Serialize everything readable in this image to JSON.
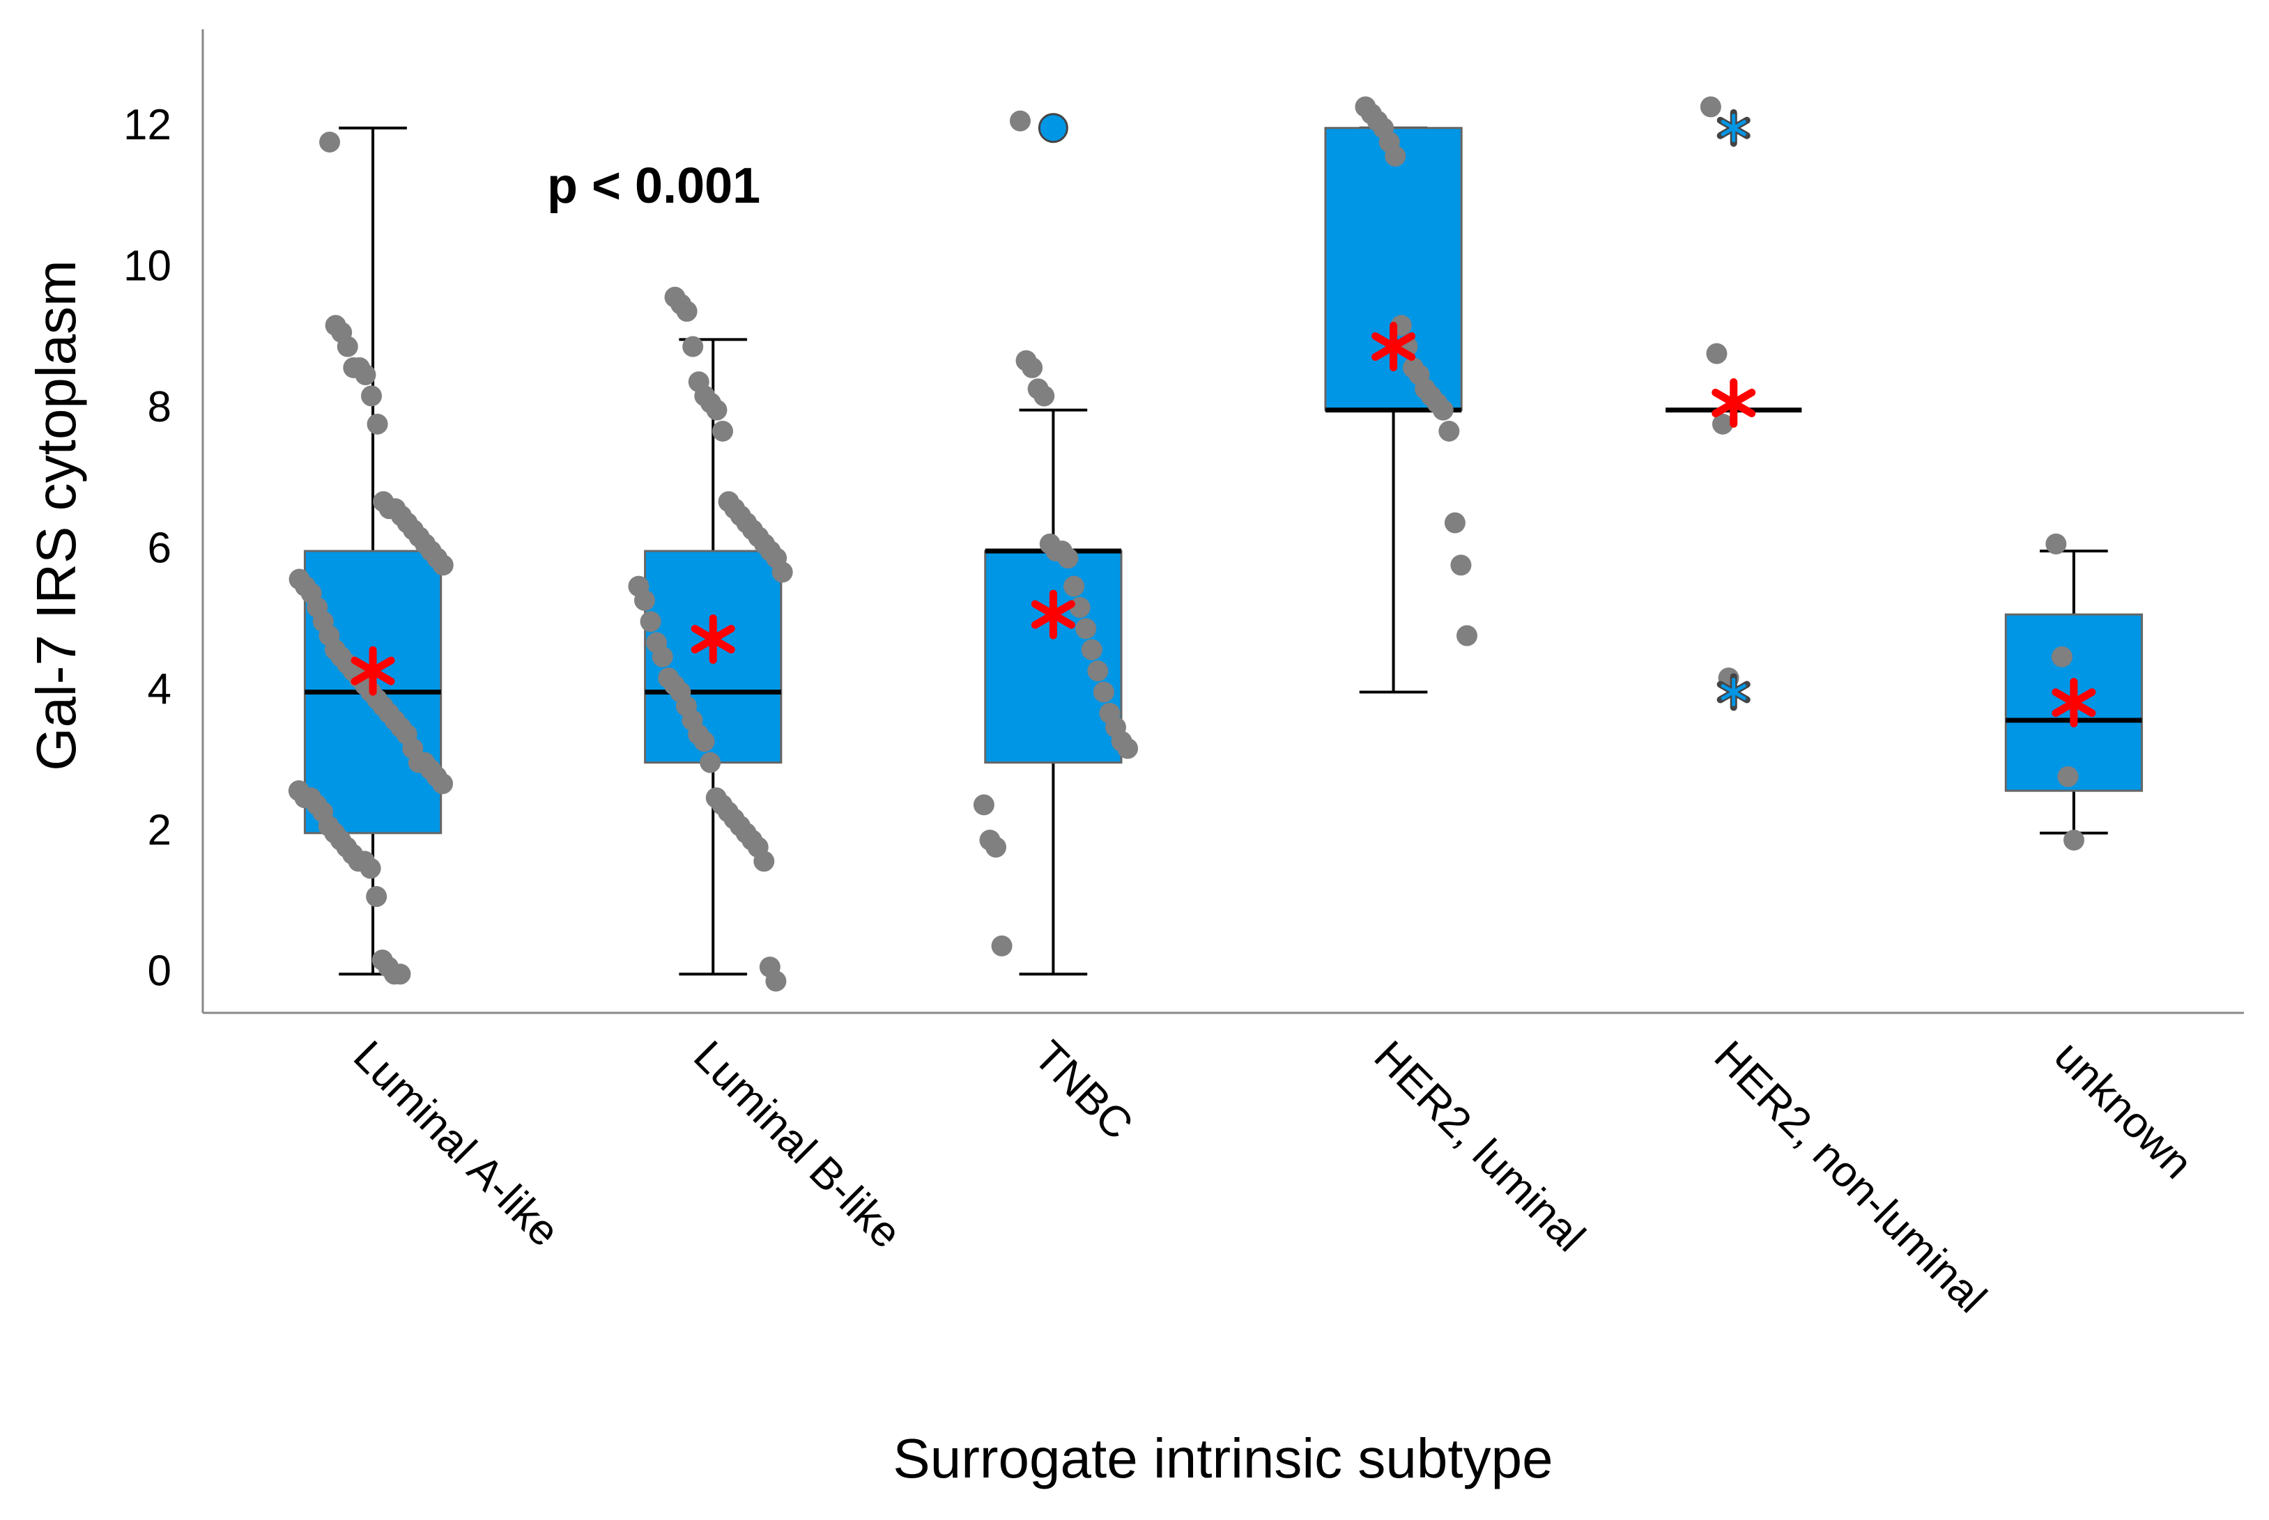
{
  "chart_data": {
    "type": "box",
    "y_label": "Gal-7 IRS cytoplasm",
    "x_label": "Surrogate intrinsic subtype",
    "annotation": "p < 0.001",
    "categories": [
      "Luminal A-like",
      "Luminal B-like",
      "TNBC",
      "HER2, luminal",
      "HER2, non-luminal",
      "unknown"
    ],
    "box_color": "#0096e6",
    "point_color": "#808080",
    "mean_color": "#ff0000",
    "ylim": [
      -0.55,
      13.4
    ],
    "yticks": [
      0,
      2,
      4,
      6,
      8,
      10,
      12
    ],
    "boxes": [
      {
        "whislo": 0,
        "q1": 2,
        "med": 4,
        "q3": 6,
        "whishi": 12,
        "mean": 4.3,
        "points": [
          11.8,
          9.2,
          9.1,
          8.9,
          8.6,
          8.6,
          8.5,
          8.2,
          7.8,
          6.7,
          6.6,
          6.6,
          6.5,
          6.4,
          6.3,
          6.2,
          6.1,
          6.0,
          5.9,
          5.8,
          5.6,
          5.5,
          5.4,
          5.2,
          5.0,
          4.8,
          4.6,
          4.5,
          4.4,
          4.3,
          4.2,
          4.1,
          4.0,
          3.9,
          3.8,
          3.7,
          3.6,
          3.5,
          3.4,
          3.2,
          3.0,
          3.0,
          2.9,
          2.8,
          2.7,
          2.6,
          2.5,
          2.5,
          2.4,
          2.3,
          2.1,
          2.0,
          1.9,
          1.8,
          1.7,
          1.6,
          1.6,
          1.5,
          1.1,
          0.2,
          0.1,
          0,
          0
        ]
      },
      {
        "whislo": 0,
        "q1": 3,
        "med": 4,
        "q3": 6,
        "whishi": 9,
        "mean": 4.75,
        "points": [
          9.6,
          9.5,
          9.4,
          8.9,
          8.4,
          8.2,
          8.1,
          8.0,
          7.7,
          6.7,
          6.6,
          6.5,
          6.4,
          6.3,
          6.2,
          6.1,
          6.0,
          5.9,
          5.7,
          5.5,
          5.3,
          5.0,
          4.7,
          4.5,
          4.2,
          4.1,
          4.0,
          3.8,
          3.6,
          3.4,
          3.3,
          3.0,
          2.5,
          2.4,
          2.3,
          2.2,
          2.1,
          2.0,
          1.9,
          1.8,
          1.6,
          0.1,
          -0.1
        ]
      },
      {
        "whislo": 0,
        "q1": 3,
        "med": 6,
        "q3": 6,
        "whishi": 8,
        "mean": 5.1,
        "outliers": [
          12
        ],
        "points": [
          12.1,
          8.7,
          8.6,
          8.3,
          8.2,
          6.1,
          6.0,
          6.0,
          5.9,
          5.5,
          5.2,
          4.9,
          4.6,
          4.3,
          4.0,
          3.7,
          3.5,
          3.3,
          3.2,
          2.4,
          1.9,
          1.8,
          0.4
        ]
      },
      {
        "whislo": 4,
        "q1": 8,
        "med": 8,
        "q3": 12,
        "whishi": 12,
        "mean": 8.9,
        "points": [
          12.3,
          12.2,
          12.1,
          12.0,
          11.8,
          11.6,
          9.2,
          8.9,
          8.6,
          8.5,
          8.3,
          8.2,
          8.1,
          8.0,
          7.7,
          6.4,
          5.8,
          4.8
        ]
      },
      {
        "whislo": 8,
        "q1": 8,
        "med": 8,
        "q3": 8,
        "whishi": 8,
        "mean": 8.1,
        "extremes": [
          12,
          4
        ],
        "points": [
          12.3,
          8.8,
          7.8,
          4.2
        ]
      },
      {
        "whislo": 2,
        "q1": 2.6,
        "med": 3.6,
        "q3": 5.1,
        "whishi": 6,
        "mean": 3.85,
        "points": [
          6.1,
          4.5,
          2.8,
          1.9
        ]
      }
    ]
  }
}
